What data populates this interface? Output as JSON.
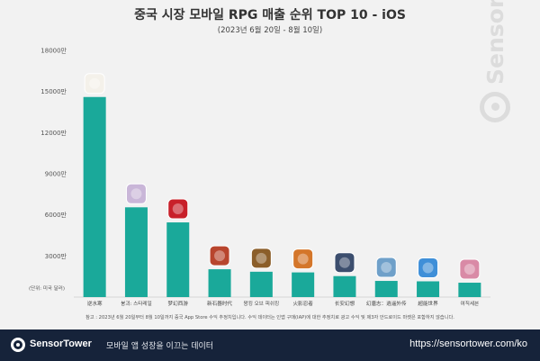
{
  "header": {
    "title": "중국 시장 모바일 RPG 매출 순위 TOP 10 - iOS",
    "subtitle": "(2023년 6월 20일 - 8월 10일)"
  },
  "unit_note": "(단위: 미국 달러)",
  "footnote": "참고 : 2023년 6월 20일부터 8월 10일까지 중국 App Store 수익 추정치입니다. 수익 데이터는 인앱 구매(IAP)에 대한 추정치로 광고 수익 및 제3자 안드로이드 마켓은 포함하지 않습니다.",
  "watermark": "SensorTower",
  "footer": {
    "brand": "SensorTower",
    "tagline": "모바일 앱 성장을 이끄는 데이터",
    "site": "https://sensortower.com/ko"
  },
  "colors": {
    "bar": "#1aa99a",
    "footer_bg": "#16233a",
    "background": "#f2f2f2"
  },
  "chart_data": {
    "type": "bar",
    "categories": [
      "逆水寒",
      "붕괴: 스타레일",
      "梦幻西游",
      "新石器时代",
      "왕킹 오브 피쉬킹",
      "火影忍者",
      "长安幻想",
      "幻唐志：逍遥外传",
      "超能世界",
      "여직세븐"
    ],
    "values": [
      14600,
      6550,
      5450,
      2030,
      1850,
      1800,
      1530,
      1180,
      1150,
      1050
    ],
    "icons": [
      "nishuihan-icon",
      "starrail-icon",
      "menghuan-icon",
      "xinshiqi-icon",
      "fishking-icon",
      "naruto-icon",
      "changan-icon",
      "huantang-icon",
      "chaoneng-icon",
      "girl-seven-icon"
    ],
    "icon_colors": [
      "#f4f1ea",
      "#c9b6d8",
      "#c8202a",
      "#b8452d",
      "#8b5e2a",
      "#d4762a",
      "#3c4e6e",
      "#6fa0c9",
      "#3f8fd8",
      "#d98aa6"
    ],
    "yticks": [
      "",
      "3000만",
      "6000만",
      "9000만",
      "12000만",
      "15000만",
      "18000만"
    ],
    "ylim": [
      0,
      18000
    ],
    "grid": false
  }
}
